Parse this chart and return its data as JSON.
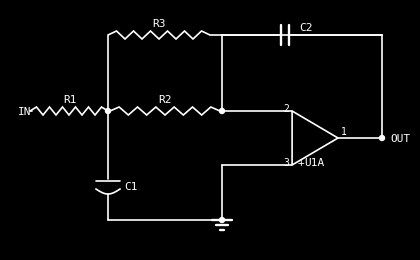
{
  "bg_color": "#000000",
  "fg_color": "#ffffff",
  "components": {
    "R1_label": "R1",
    "R2_label": "R2",
    "R3_label": "R3",
    "C1_label": "C1",
    "C2_label": "C2",
    "U1A_label": "U1A",
    "IN_label": "IN",
    "OUT_label": "OUT"
  },
  "pin_labels": {
    "inv": "2",
    "noninv": "3",
    "out": "1"
  },
  "noninv_sign": "+",
  "figsize": [
    4.2,
    2.6
  ],
  "dpi": 100
}
